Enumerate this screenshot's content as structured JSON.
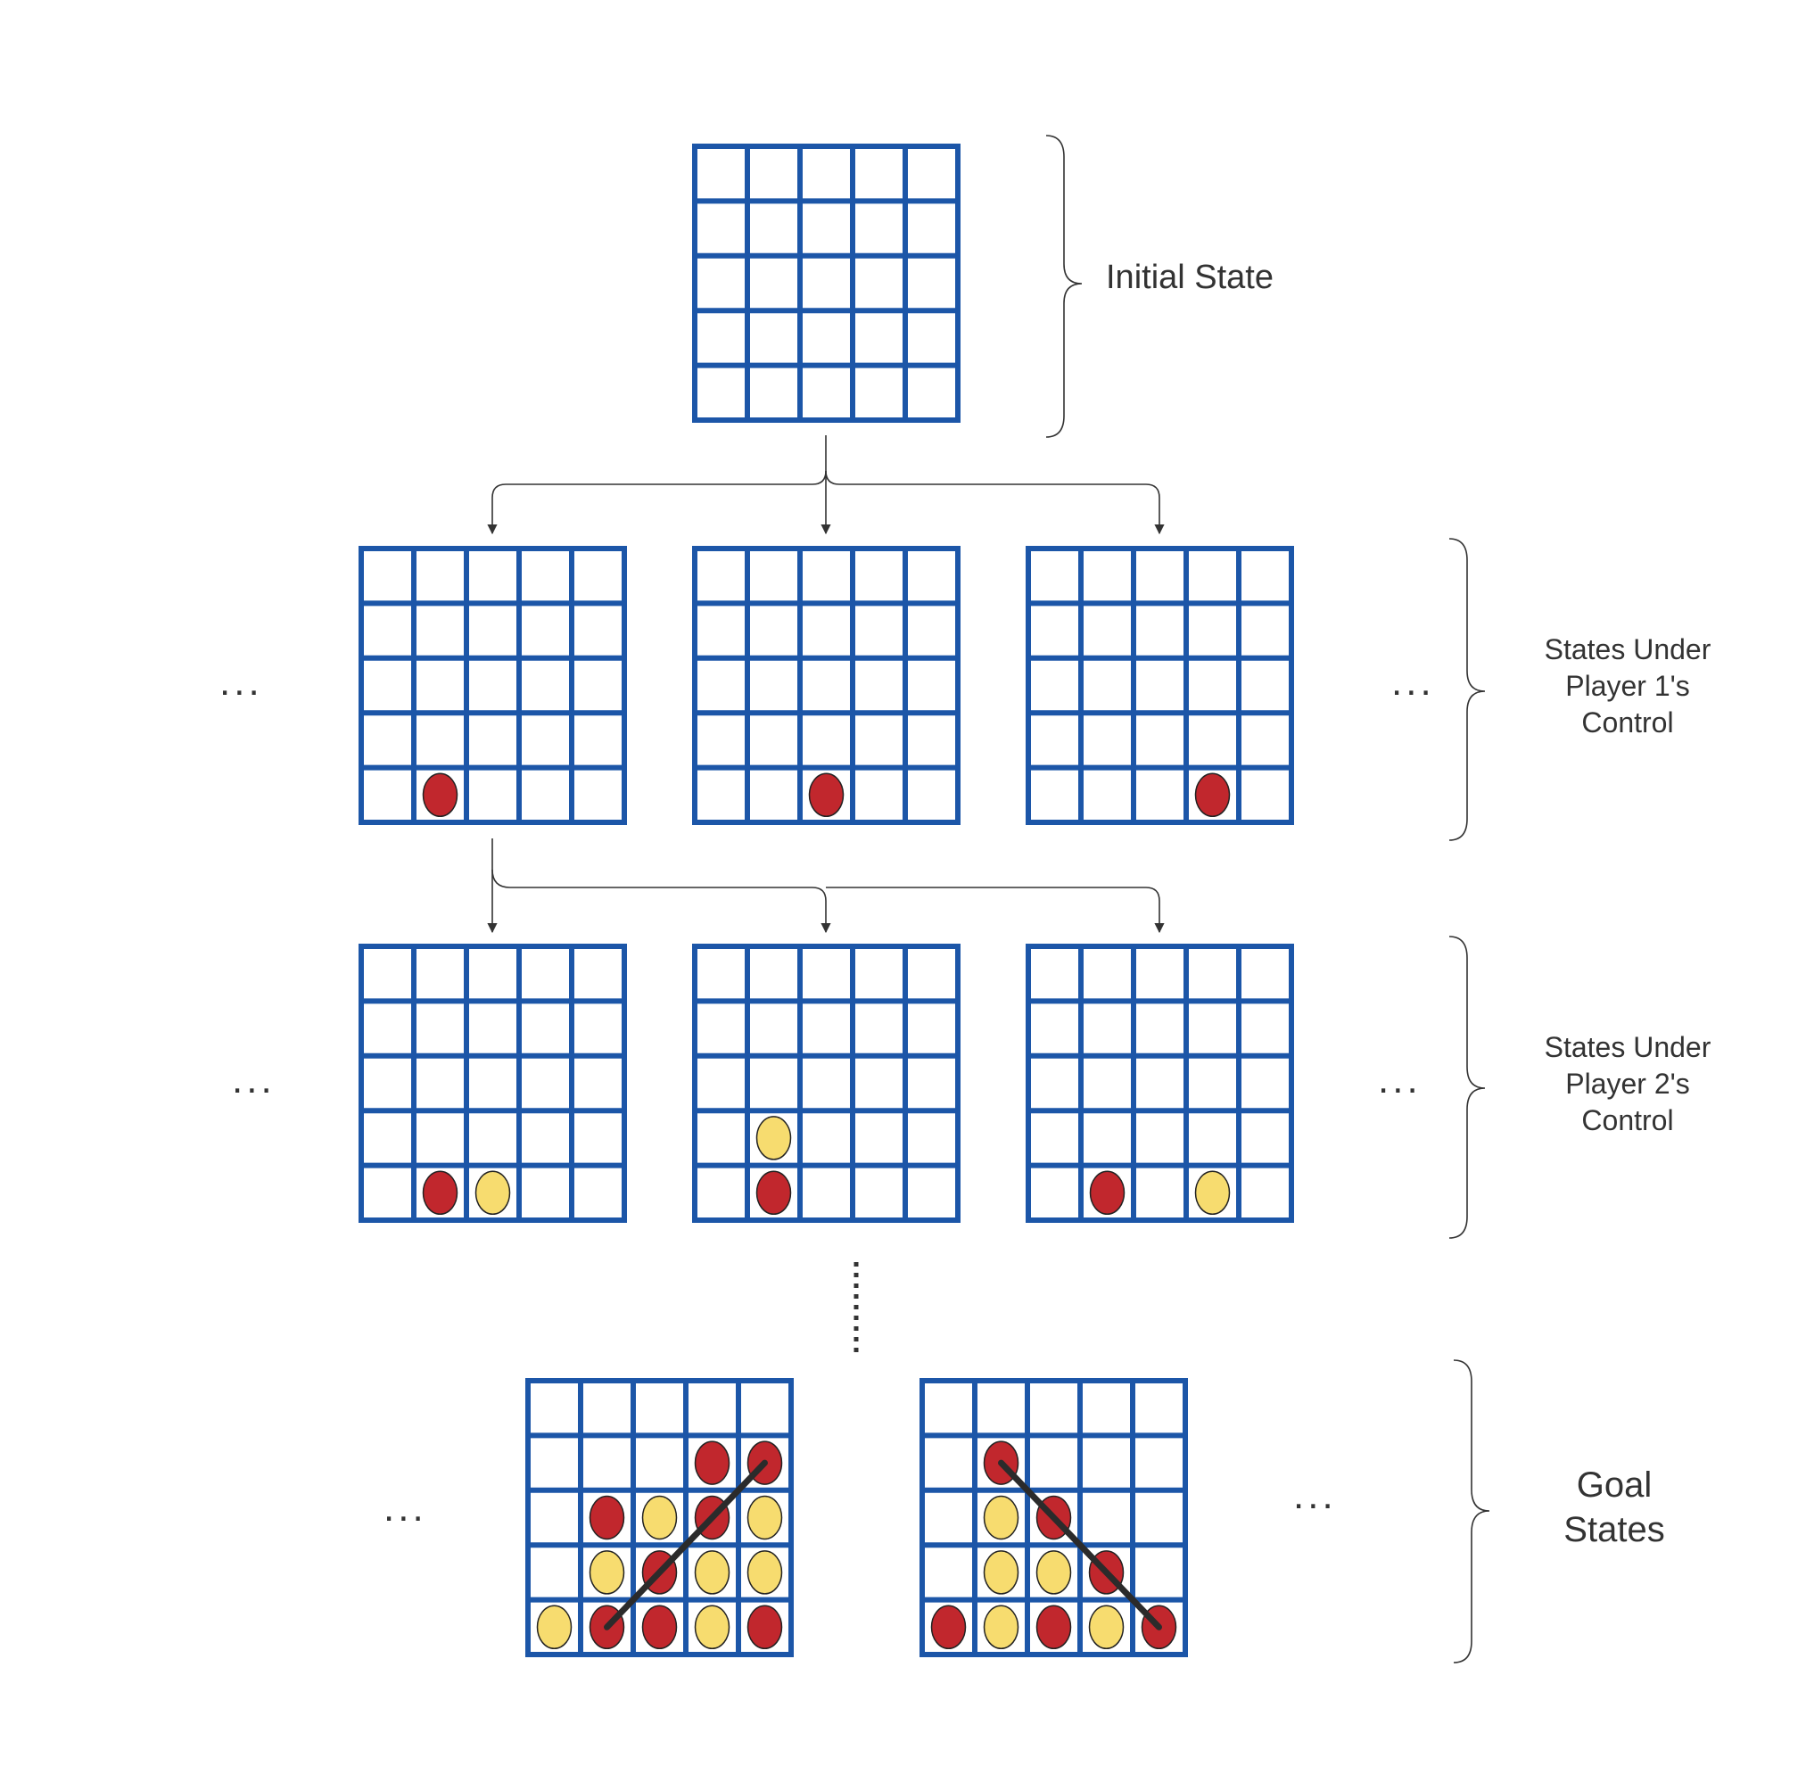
{
  "colors": {
    "grid": "#1c56a8",
    "red": "#c1272d",
    "yellow": "#f7dc6f",
    "line": "#333333",
    "win_line": "#2b2b2b"
  },
  "labels": {
    "initial": "Initial State",
    "p1": "States Under\nPlayer 1's\nControl",
    "p2": "States Under\nPlayer 2's\nControl",
    "goal": "Goal\nStates"
  },
  "ellipsis": "...",
  "boards": [
    {
      "id": "initial",
      "pieces": []
    },
    {
      "id": "p1-a",
      "pieces": [
        {
          "r": 4,
          "c": 1,
          "p": "red"
        }
      ]
    },
    {
      "id": "p1-b",
      "pieces": [
        {
          "r": 4,
          "c": 2,
          "p": "red"
        }
      ]
    },
    {
      "id": "p1-c",
      "pieces": [
        {
          "r": 4,
          "c": 3,
          "p": "red"
        }
      ]
    },
    {
      "id": "p2-a",
      "pieces": [
        {
          "r": 4,
          "c": 1,
          "p": "red"
        },
        {
          "r": 4,
          "c": 2,
          "p": "yellow"
        }
      ]
    },
    {
      "id": "p2-b",
      "pieces": [
        {
          "r": 3,
          "c": 1,
          "p": "yellow"
        },
        {
          "r": 4,
          "c": 1,
          "p": "red"
        }
      ]
    },
    {
      "id": "p2-c",
      "pieces": [
        {
          "r": 4,
          "c": 1,
          "p": "red"
        },
        {
          "r": 4,
          "c": 3,
          "p": "yellow"
        }
      ]
    },
    {
      "id": "goal-a",
      "pieces": [
        {
          "r": 1,
          "c": 3,
          "p": "red"
        },
        {
          "r": 1,
          "c": 4,
          "p": "red"
        },
        {
          "r": 2,
          "c": 1,
          "p": "red"
        },
        {
          "r": 2,
          "c": 2,
          "p": "yellow"
        },
        {
          "r": 2,
          "c": 3,
          "p": "red"
        },
        {
          "r": 2,
          "c": 4,
          "p": "yellow"
        },
        {
          "r": 3,
          "c": 1,
          "p": "yellow"
        },
        {
          "r": 3,
          "c": 2,
          "p": "red"
        },
        {
          "r": 3,
          "c": 3,
          "p": "yellow"
        },
        {
          "r": 3,
          "c": 4,
          "p": "yellow"
        },
        {
          "r": 4,
          "c": 0,
          "p": "yellow"
        },
        {
          "r": 4,
          "c": 1,
          "p": "red"
        },
        {
          "r": 4,
          "c": 2,
          "p": "red"
        },
        {
          "r": 4,
          "c": 3,
          "p": "yellow"
        },
        {
          "r": 4,
          "c": 4,
          "p": "red"
        }
      ],
      "win": [
        {
          "r": 4,
          "c": 1
        },
        {
          "r": 1,
          "c": 4
        }
      ]
    },
    {
      "id": "goal-b",
      "pieces": [
        {
          "r": 1,
          "c": 1,
          "p": "red"
        },
        {
          "r": 2,
          "c": 1,
          "p": "yellow"
        },
        {
          "r": 2,
          "c": 2,
          "p": "red"
        },
        {
          "r": 3,
          "c": 1,
          "p": "yellow"
        },
        {
          "r": 3,
          "c": 2,
          "p": "yellow"
        },
        {
          "r": 3,
          "c": 3,
          "p": "red"
        },
        {
          "r": 4,
          "c": 0,
          "p": "red"
        },
        {
          "r": 4,
          "c": 1,
          "p": "yellow"
        },
        {
          "r": 4,
          "c": 2,
          "p": "red"
        },
        {
          "r": 4,
          "c": 3,
          "p": "yellow"
        },
        {
          "r": 4,
          "c": 4,
          "p": "red"
        }
      ],
      "win": [
        {
          "r": 1,
          "c": 1
        },
        {
          "r": 4,
          "c": 4
        }
      ]
    }
  ]
}
